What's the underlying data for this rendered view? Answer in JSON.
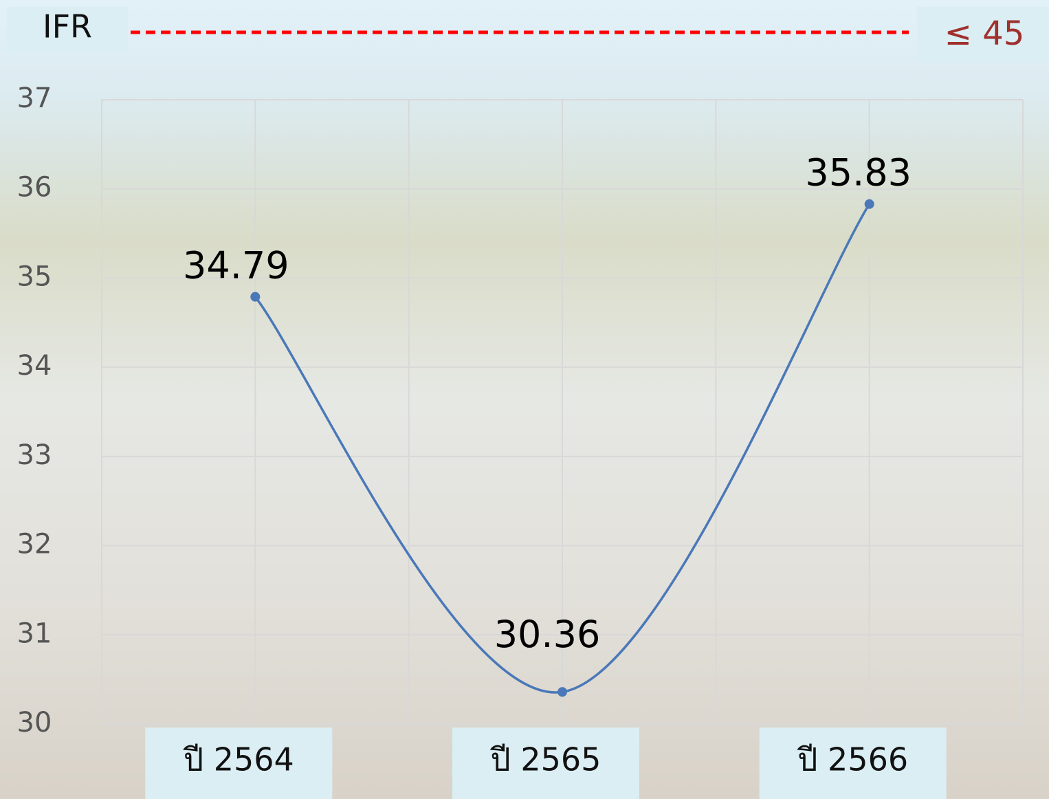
{
  "chart_data": {
    "type": "line",
    "title": "IFR",
    "target_label": "≤ 45",
    "categories": [
      "ปี 2564",
      "ปี 2565",
      "ปี 2566"
    ],
    "series": [
      {
        "name": "IFR",
        "color": "#4a78b8",
        "values": [
          34.79,
          30.36,
          35.83
        ]
      }
    ],
    "ylim": [
      30,
      37
    ],
    "yticks": [
      30,
      31,
      32,
      33,
      34,
      35,
      36,
      37
    ],
    "grid": true
  }
}
